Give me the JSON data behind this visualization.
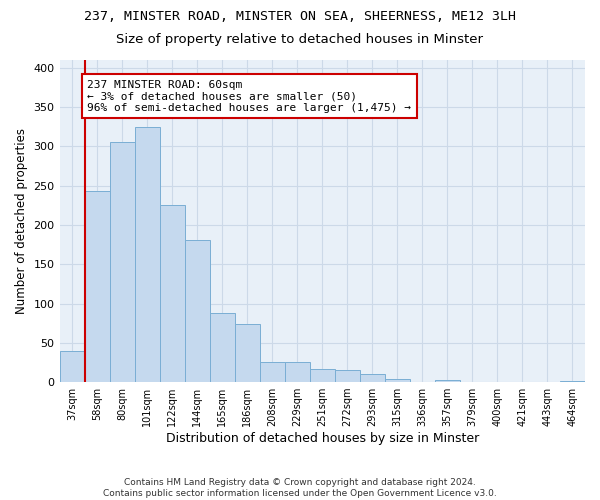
{
  "title_line1": "237, MINSTER ROAD, MINSTER ON SEA, SHEERNESS, ME12 3LH",
  "title_line2": "Size of property relative to detached houses in Minster",
  "xlabel": "Distribution of detached houses by size in Minster",
  "ylabel": "Number of detached properties",
  "categories": [
    "37sqm",
    "58sqm",
    "80sqm",
    "101sqm",
    "122sqm",
    "144sqm",
    "165sqm",
    "186sqm",
    "208sqm",
    "229sqm",
    "251sqm",
    "272sqm",
    "293sqm",
    "315sqm",
    "336sqm",
    "357sqm",
    "379sqm",
    "400sqm",
    "421sqm",
    "443sqm",
    "464sqm"
  ],
  "values": [
    40,
    243,
    305,
    325,
    226,
    181,
    88,
    74,
    26,
    25,
    17,
    16,
    10,
    4,
    0,
    3,
    0,
    0,
    0,
    0,
    2
  ],
  "bar_color": "#c5d9ee",
  "bar_edge_color": "#7aaed4",
  "vline_x": 1.5,
  "vline_color": "#cc0000",
  "annotation_box_text": "237 MINSTER ROAD: 60sqm\n← 3% of detached houses are smaller (50)\n96% of semi-detached houses are larger (1,475) →",
  "annotation_box_color": "#cc0000",
  "annotation_box_fill": "#ffffff",
  "ylim": [
    0,
    410
  ],
  "yticks": [
    0,
    50,
    100,
    150,
    200,
    250,
    300,
    350,
    400
  ],
  "footnote": "Contains HM Land Registry data © Crown copyright and database right 2024.\nContains public sector information licensed under the Open Government Licence v3.0.",
  "grid_color": "#ccd9e8",
  "background_color": "#e8f0f8"
}
